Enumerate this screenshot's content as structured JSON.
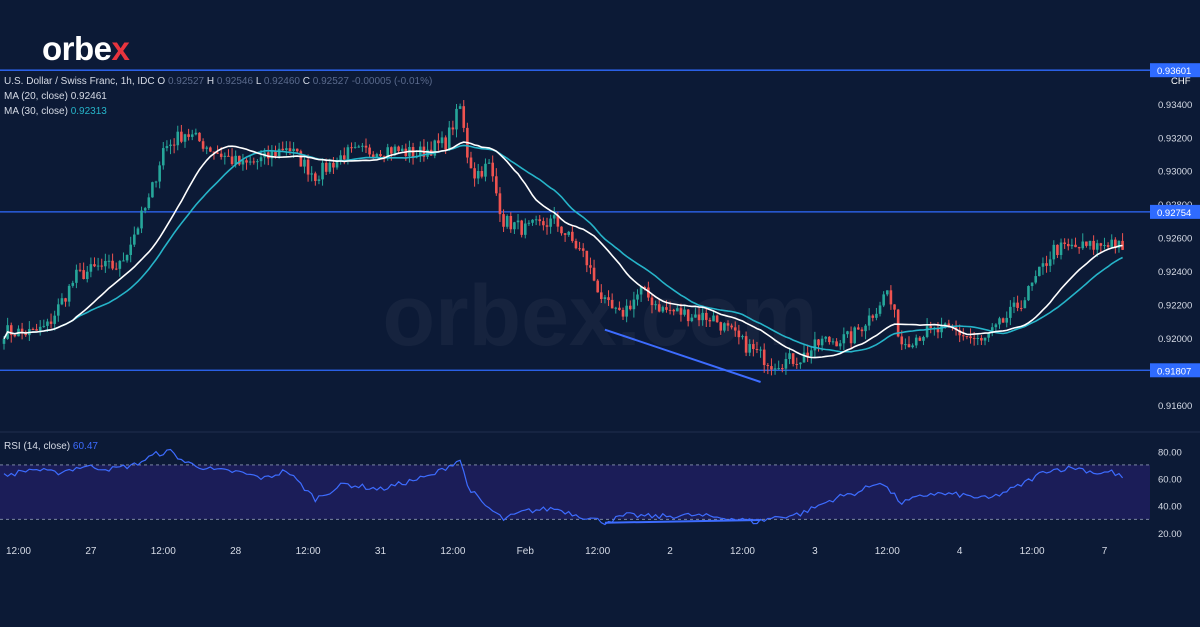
{
  "brand": {
    "name_prefix": "orbe",
    "name_x": "x",
    "watermark": "orbex.com",
    "accent": "#e8343e"
  },
  "colors": {
    "background": "#0c1a36",
    "up": "#26a69a",
    "down": "#ef5350",
    "ma20": "#ffffff",
    "ma30": "#26b4c9",
    "level": "#2f6bff",
    "trend": "#3d6cff",
    "rsi": "#3d6cff",
    "rsi_band": "#1e1f5e"
  },
  "legend": {
    "symbol": "U.S. Dollar / Swiss Franc, 1h, IDC",
    "o_label": "O",
    "o_value": "0.92527",
    "h_label": "H",
    "h_value": "0.92546",
    "l_label": "L",
    "l_value": "0.92460",
    "c_label": "C",
    "c_value": "0.92527",
    "change": "-0.00005 (-0.01%)",
    "ma20_label": "MA (20, close)",
    "ma20_value": "0.92461",
    "ma30_label": "MA (30, close)",
    "ma30_value": "0.92313",
    "rsi_label": "RSI (14, close)",
    "rsi_value": "60.47"
  },
  "chart_data": [
    {
      "type": "candlestick",
      "title": "U.S. Dollar / Swiss Franc, 1h, IDC",
      "currency": "CHF",
      "ylim": [
        0.9145,
        0.9365
      ],
      "y_ticks": [
        "0.93400",
        "0.93200",
        "0.93000",
        "0.92800",
        "0.92600",
        "0.92400",
        "0.92200",
        "0.92000",
        "0.91600"
      ],
      "y_tick_values": [
        0.934,
        0.932,
        0.93,
        0.928,
        0.926,
        0.924,
        0.922,
        0.92,
        0.916
      ],
      "horizontal_levels": [
        {
          "value": 0.93601,
          "label": "0.93601"
        },
        {
          "value": 0.92754,
          "label": "0.92754"
        },
        {
          "value": 0.91807,
          "label": "0.91807"
        }
      ],
      "x_ticks": [
        "12:00",
        "27",
        "12:00",
        "28",
        "12:00",
        "31",
        "12:00",
        "Feb",
        "12:00",
        "2",
        "12:00",
        "3",
        "12:00",
        "4",
        "12:00",
        "7"
      ],
      "x_tick_bar_index": [
        4,
        24,
        44,
        64,
        84,
        104,
        124,
        144,
        164,
        184,
        204,
        224,
        244,
        264,
        284,
        304
      ],
      "anchors": [
        [
          0,
          0.9204
        ],
        [
          8,
          0.9203
        ],
        [
          12,
          0.9207
        ],
        [
          20,
          0.9237
        ],
        [
          26,
          0.9242
        ],
        [
          32,
          0.9243
        ],
        [
          40,
          0.9282
        ],
        [
          44,
          0.9313
        ],
        [
          50,
          0.9323
        ],
        [
          58,
          0.9312
        ],
        [
          66,
          0.9303
        ],
        [
          72,
          0.9307
        ],
        [
          78,
          0.9315
        ],
        [
          86,
          0.9297
        ],
        [
          94,
          0.931
        ],
        [
          106,
          0.9313
        ],
        [
          114,
          0.931
        ],
        [
          122,
          0.9317
        ],
        [
          126,
          0.9338
        ],
        [
          128,
          0.931
        ],
        [
          130,
          0.9298
        ],
        [
          134,
          0.9303
        ],
        [
          138,
          0.927
        ],
        [
          144,
          0.9265
        ],
        [
          152,
          0.927
        ],
        [
          160,
          0.925
        ],
        [
          166,
          0.922
        ],
        [
          170,
          0.9213
        ],
        [
          176,
          0.9228
        ],
        [
          182,
          0.9217
        ],
        [
          190,
          0.9214
        ],
        [
          196,
          0.9212
        ],
        [
          204,
          0.9197
        ],
        [
          212,
          0.9185
        ],
        [
          220,
          0.9188
        ],
        [
          226,
          0.9198
        ],
        [
          234,
          0.92
        ],
        [
          240,
          0.9215
        ],
        [
          244,
          0.9228
        ],
        [
          248,
          0.9197
        ],
        [
          254,
          0.9203
        ],
        [
          262,
          0.9205
        ],
        [
          270,
          0.9197
        ],
        [
          274,
          0.9205
        ],
        [
          282,
          0.9224
        ],
        [
          290,
          0.9253
        ],
        [
          296,
          0.9254
        ],
        [
          302,
          0.9255
        ],
        [
          306,
          0.9258
        ],
        [
          309,
          0.92527
        ]
      ],
      "trendline": {
        "from": [
          166,
          0.9205
        ],
        "to": [
          209,
          0.91737
        ]
      }
    },
    {
      "type": "line",
      "title": "RSI (14, close)",
      "ylim": [
        17,
        92
      ],
      "y_ticks": [
        "80.00",
        "60.00",
        "40.00",
        "20.00"
      ],
      "y_tick_values": [
        80,
        60,
        40,
        20
      ],
      "band": [
        30,
        70
      ],
      "anchors": [
        [
          0,
          62
        ],
        [
          8,
          67
        ],
        [
          14,
          64
        ],
        [
          22,
          69
        ],
        [
          30,
          67
        ],
        [
          36,
          70
        ],
        [
          42,
          78
        ],
        [
          46,
          80
        ],
        [
          50,
          72
        ],
        [
          58,
          66
        ],
        [
          64,
          65
        ],
        [
          72,
          60
        ],
        [
          78,
          66
        ],
        [
          86,
          45
        ],
        [
          94,
          56
        ],
        [
          104,
          52
        ],
        [
          112,
          58
        ],
        [
          118,
          62
        ],
        [
          122,
          68
        ],
        [
          126,
          74
        ],
        [
          128,
          55
        ],
        [
          132,
          42
        ],
        [
          138,
          30
        ],
        [
          144,
          36
        ],
        [
          152,
          38
        ],
        [
          160,
          32
        ],
        [
          166,
          28
        ],
        [
          172,
          33
        ],
        [
          180,
          32
        ],
        [
          190,
          33
        ],
        [
          200,
          31
        ],
        [
          208,
          28
        ],
        [
          212,
          31
        ],
        [
          220,
          34
        ],
        [
          230,
          46
        ],
        [
          236,
          50
        ],
        [
          242,
          58
        ],
        [
          248,
          42
        ],
        [
          256,
          49
        ],
        [
          264,
          48
        ],
        [
          272,
          45
        ],
        [
          280,
          54
        ],
        [
          288,
          66
        ],
        [
          296,
          68
        ],
        [
          302,
          64
        ],
        [
          306,
          65
        ],
        [
          309,
          60.47
        ]
      ],
      "trendline": {
        "from": [
          166,
          27.5
        ],
        "to": [
          209,
          29.5
        ]
      }
    }
  ]
}
